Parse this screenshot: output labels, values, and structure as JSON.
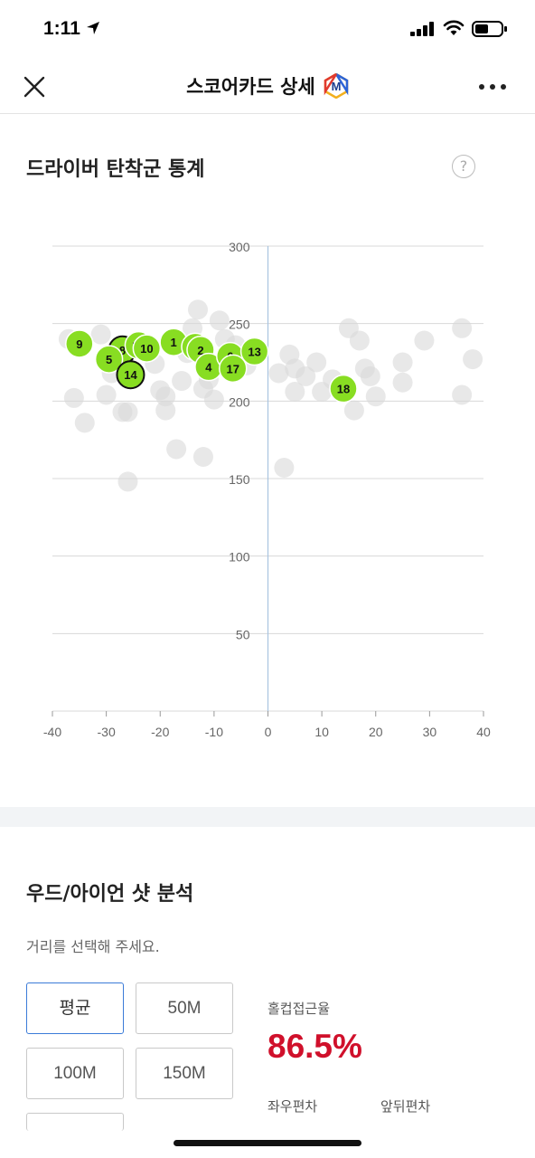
{
  "status": {
    "time": "1:11"
  },
  "nav": {
    "title": "스코어카드 상세",
    "badge": "M"
  },
  "driver": {
    "title": "드라이버 탄착군 통계",
    "help": "?"
  },
  "chart_data": {
    "type": "scatter",
    "title": "",
    "xlabel": "",
    "ylabel": "",
    "xlim": [
      -40,
      40
    ],
    "ylim": [
      0,
      300
    ],
    "x_ticks": [
      -40,
      -30,
      -20,
      -10,
      0,
      10,
      20,
      30,
      40
    ],
    "y_ticks": [
      50,
      100,
      150,
      200,
      250,
      300
    ],
    "grid": "horizontal",
    "colors": {
      "highlight": "#88dd22",
      "other": "#d9d9d9",
      "axis": "#a9c4e0",
      "grid": "#d8d8d8"
    },
    "series": [
      {
        "points": [
          {
            "label": "9",
            "x": -35,
            "y": 237
          },
          {
            "label": "8",
            "x": -27,
            "y": 233,
            "outlined": true
          },
          {
            "label": "5",
            "x": -29.5,
            "y": 227
          },
          {
            "label": "15",
            "x": -24,
            "y": 236
          },
          {
            "label": "10",
            "x": -22.5,
            "y": 234
          },
          {
            "label": "14",
            "x": -25.5,
            "y": 217,
            "outlined": true
          },
          {
            "label": "1",
            "x": -17.5,
            "y": 238
          },
          {
            "label": "11",
            "x": -13.5,
            "y": 235
          },
          {
            "label": "2",
            "x": -12.5,
            "y": 233
          },
          {
            "label": "4",
            "x": -11,
            "y": 222
          },
          {
            "label": "6",
            "x": -7,
            "y": 229
          },
          {
            "label": "17",
            "x": -6.5,
            "y": 221
          },
          {
            "label": "13",
            "x": -2.5,
            "y": 232
          },
          {
            "label": "18",
            "x": 14,
            "y": 208
          }
        ]
      },
      {
        "points": [
          {
            "x": -37,
            "y": 240
          },
          {
            "x": -36,
            "y": 202
          },
          {
            "x": -34,
            "y": 186
          },
          {
            "x": -31,
            "y": 243
          },
          {
            "x": -30,
            "y": 204
          },
          {
            "x": -29,
            "y": 218
          },
          {
            "x": -27,
            "y": 193
          },
          {
            "x": -26,
            "y": 193
          },
          {
            "x": -26,
            "y": 148
          },
          {
            "x": -21,
            "y": 224
          },
          {
            "x": -20,
            "y": 207
          },
          {
            "x": -19,
            "y": 203
          },
          {
            "x": -19,
            "y": 194
          },
          {
            "x": -17,
            "y": 169
          },
          {
            "x": -16,
            "y": 213
          },
          {
            "x": -15,
            "y": 231
          },
          {
            "x": -14,
            "y": 247
          },
          {
            "x": -13,
            "y": 259
          },
          {
            "x": -12,
            "y": 208
          },
          {
            "x": -12,
            "y": 164
          },
          {
            "x": -11,
            "y": 214
          },
          {
            "x": -10,
            "y": 201
          },
          {
            "x": -9,
            "y": 252
          },
          {
            "x": -8,
            "y": 240
          },
          {
            "x": -6,
            "y": 236
          },
          {
            "x": -4,
            "y": 223
          },
          {
            "x": 2,
            "y": 218
          },
          {
            "x": 3,
            "y": 157
          },
          {
            "x": 4,
            "y": 230
          },
          {
            "x": 5,
            "y": 221
          },
          {
            "x": 5,
            "y": 206
          },
          {
            "x": 7,
            "y": 216
          },
          {
            "x": 9,
            "y": 225
          },
          {
            "x": 10,
            "y": 206
          },
          {
            "x": 12,
            "y": 214
          },
          {
            "x": 15,
            "y": 247
          },
          {
            "x": 16,
            "y": 194
          },
          {
            "x": 17,
            "y": 239
          },
          {
            "x": 18,
            "y": 221
          },
          {
            "x": 19,
            "y": 216
          },
          {
            "x": 20,
            "y": 203
          },
          {
            "x": 25,
            "y": 225
          },
          {
            "x": 25,
            "y": 212
          },
          {
            "x": 29,
            "y": 239
          },
          {
            "x": 36,
            "y": 247
          },
          {
            "x": 36,
            "y": 204
          },
          {
            "x": 38,
            "y": 227
          }
        ]
      }
    ]
  },
  "wood_iron": {
    "title": "우드/아이언 샷 분석",
    "hint": "거리를 선택해 주세요.",
    "buttons": [
      "평균",
      "50M",
      "100M",
      "150M"
    ],
    "selected": "평균"
  },
  "stats": {
    "hole_cup_label": "홀컵접근율",
    "hole_cup_value": "86.5%",
    "lr_label": "좌우편차",
    "fb_label": "앞뒤편차"
  }
}
